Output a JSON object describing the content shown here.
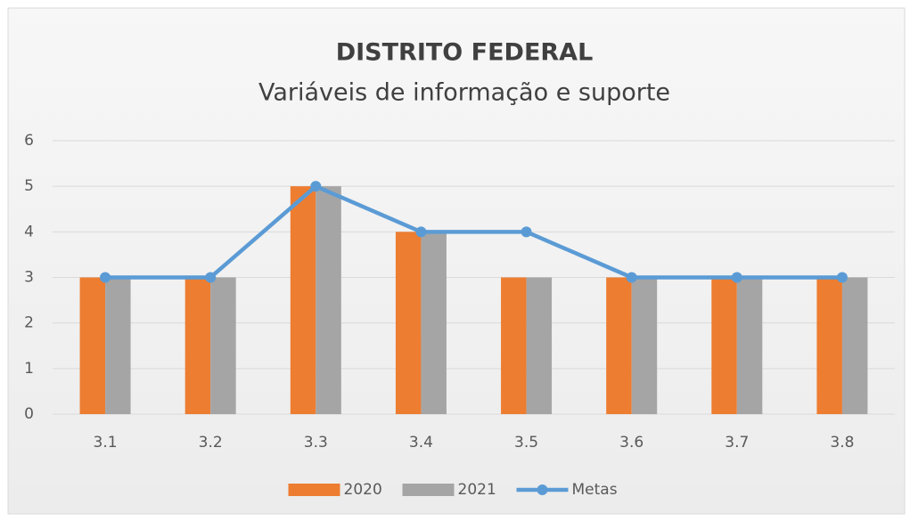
{
  "chart_data": {
    "type": "bar",
    "title": "DISTRITO FEDERAL",
    "subtitle": "Variáveis de informação e suporte",
    "categories": [
      "3.1",
      "3.2",
      "3.3",
      "3.4",
      "3.5",
      "3.6",
      "3.7",
      "3.8"
    ],
    "series": [
      {
        "name": "2020",
        "type": "bar",
        "color": "#ed7d31",
        "values": [
          3,
          3,
          5,
          4,
          3,
          3,
          3,
          3
        ]
      },
      {
        "name": "2021",
        "type": "bar",
        "color": "#a5a5a5",
        "values": [
          3,
          3,
          5,
          4,
          3,
          3,
          3,
          3
        ]
      },
      {
        "name": "Metas",
        "type": "line",
        "color": "#5b9bd5",
        "values": [
          3,
          3,
          5,
          4,
          4,
          3,
          3,
          3
        ]
      }
    ],
    "ylim": [
      0,
      6
    ],
    "yticks": [
      0,
      1,
      2,
      3,
      4,
      5,
      6
    ],
    "grid": true,
    "legend": "bottom"
  }
}
